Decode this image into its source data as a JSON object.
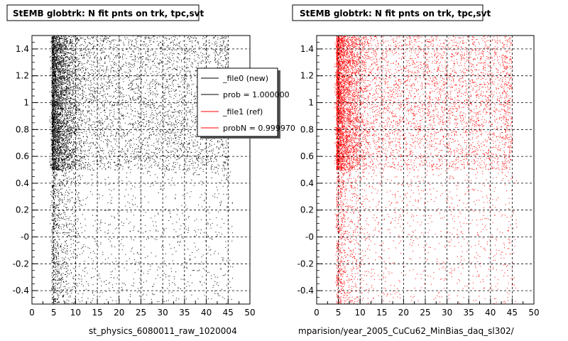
{
  "panels": [
    {
      "title": "StEMB globtrk: N fit pnts on trk, tpc,svt",
      "caption": "st_physics_6080011_raw_1020004",
      "marker_color": "#000000"
    },
    {
      "title": "StEMB globtrk: N fit pnts on trk, tpc,svt",
      "caption": "mparision/year_2005_CuCu62_MinBias_daq_sl302/",
      "marker_color": "#ff0000"
    }
  ],
  "legend": {
    "entries": [
      {
        "label": "_file0 (new)",
        "color": "#000000"
      },
      {
        "label": "prob = 1.000000",
        "color": "#000000"
      },
      {
        "label": "_file1 (ref)",
        "color": "#ff0000"
      },
      {
        "label": "probN = 0.999970",
        "color": "#ff0000"
      }
    ]
  },
  "chart_data": [
    {
      "type": "scatter",
      "title": "StEMB globtrk: N fit pnts on trk, tpc,svt",
      "xlim": [
        0,
        50
      ],
      "ylim": [
        -0.5,
        1.5
      ],
      "x_ticks": [
        0,
        5,
        10,
        15,
        20,
        25,
        30,
        35,
        40,
        45,
        50
      ],
      "y_tick_labels": [
        "-0.4",
        "-0.2",
        "-0",
        "0.2",
        "0.4",
        "0.6",
        "0.8",
        "1",
        "1.2",
        "1.4"
      ],
      "y_ticks": [
        -0.4,
        -0.2,
        0,
        0.2,
        0.4,
        0.6,
        0.8,
        1.0,
        1.2,
        1.4
      ],
      "grid": true,
      "series": [
        {
          "name": "_file0 (new)",
          "color": "#000000",
          "x_range": [
            4,
            46
          ],
          "y_range": [
            -0.5,
            1.5
          ],
          "dense_region_y_range": [
            0.5,
            1.5
          ],
          "dense_region_x_peak": [
            5,
            12
          ]
        }
      ]
    },
    {
      "type": "scatter",
      "title": "StEMB globtrk: N fit pnts on trk, tpc,svt",
      "xlim": [
        0,
        50
      ],
      "ylim": [
        -0.5,
        1.5
      ],
      "x_ticks": [
        0,
        5,
        10,
        15,
        20,
        25,
        30,
        35,
        40,
        45,
        50
      ],
      "y_tick_labels": [
        "-0.4",
        "-0.2",
        "-0",
        "0.2",
        "0.4",
        "0.6",
        "0.8",
        "1",
        "1.2",
        "1.4"
      ],
      "y_ticks": [
        -0.4,
        -0.2,
        0,
        0.2,
        0.4,
        0.6,
        0.8,
        1.0,
        1.2,
        1.4
      ],
      "grid": true,
      "series": [
        {
          "name": "_file1 (ref)",
          "color": "#ff0000",
          "x_range": [
            4,
            46
          ],
          "y_range": [
            -0.5,
            1.5
          ],
          "dense_region_y_range": [
            0.5,
            1.5
          ],
          "dense_region_x_peak": [
            5,
            12
          ]
        }
      ]
    }
  ]
}
